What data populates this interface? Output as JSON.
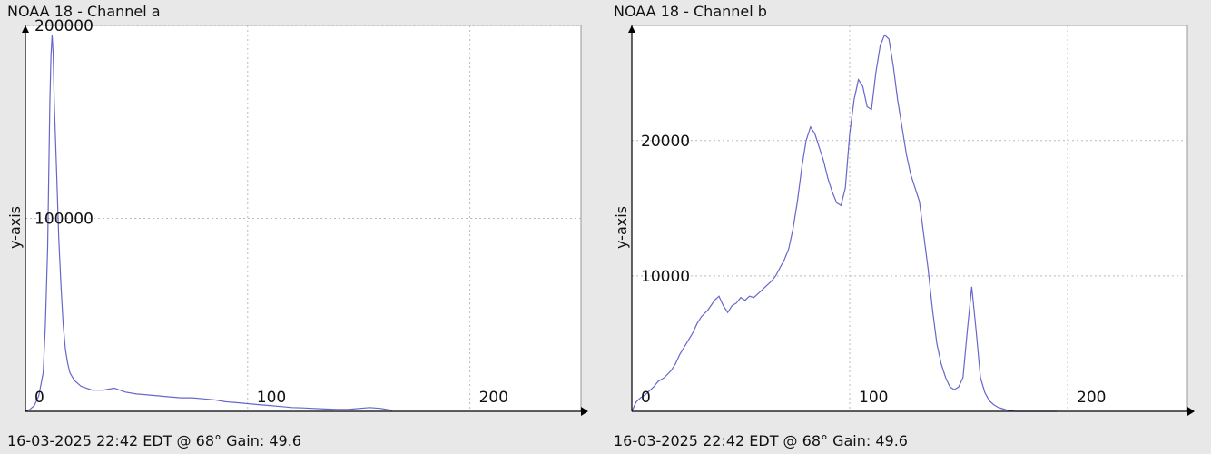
{
  "chart_data": [
    {
      "type": "line",
      "title": "NOAA 18 - Channel a",
      "footer": "16-03-2025 22:42 EDT @ 68° Gain: 49.6",
      "xlabel": "",
      "ylabel": "y-axis",
      "xlim": [
        0,
        250
      ],
      "ylim": [
        0,
        200000
      ],
      "xticks": [
        0,
        100,
        200
      ],
      "yticks": [
        100000,
        200000
      ],
      "grid": true,
      "color": "#6666cc",
      "series": [
        {
          "x": [
            0,
            2,
            4,
            6,
            8,
            9,
            10,
            11,
            11.5,
            12,
            12.5,
            13,
            14,
            15,
            16,
            17,
            18,
            19,
            20,
            22,
            25,
            30,
            35,
            40,
            45,
            50,
            55,
            60,
            65,
            70,
            75,
            80,
            85,
            90,
            95,
            100,
            105,
            110,
            115,
            120,
            125,
            130,
            135,
            140,
            145,
            150,
            155,
            160,
            165
          ],
          "y": [
            0,
            1000,
            3000,
            8000,
            20000,
            45000,
            85000,
            160000,
            185000,
            195000,
            185000,
            160000,
            125000,
            90000,
            65000,
            45000,
            32000,
            25000,
            20000,
            16000,
            13000,
            11000,
            11000,
            12000,
            10000,
            9000,
            8500,
            8000,
            7500,
            7000,
            7000,
            6500,
            6000,
            5000,
            4500,
            4000,
            3500,
            3000,
            2500,
            2000,
            1800,
            1500,
            1200,
            1000,
            1000,
            1500,
            2000,
            1500,
            500
          ]
        }
      ],
      "tick_labels": {
        "x0": "0",
        "x1": "100",
        "x2": "200",
        "y1": "100000",
        "y2": "200000"
      }
    },
    {
      "type": "line",
      "title": "NOAA 18 - Channel b",
      "footer": "16-03-2025 22:42 EDT @ 68° Gain: 49.6",
      "xlabel": "",
      "ylabel": "y-axis",
      "xlim": [
        0,
        255
      ],
      "ylim": [
        0,
        28500
      ],
      "xticks": [
        0,
        100,
        200
      ],
      "yticks": [
        10000,
        20000
      ],
      "grid": true,
      "color": "#6666cc",
      "series": [
        {
          "x": [
            0,
            2,
            4,
            6,
            8,
            10,
            12,
            15,
            18,
            20,
            22,
            25,
            28,
            30,
            32,
            35,
            38,
            40,
            42,
            44,
            46,
            48,
            50,
            52,
            54,
            56,
            58,
            60,
            62,
            64,
            66,
            68,
            70,
            72,
            74,
            76,
            78,
            80,
            82,
            84,
            86,
            88,
            90,
            92,
            94,
            96,
            98,
            100,
            102,
            104,
            106,
            108,
            110,
            112,
            114,
            116,
            118,
            120,
            122,
            124,
            126,
            128,
            130,
            132,
            134,
            136,
            138,
            140,
            142,
            144,
            146,
            148,
            150,
            152,
            154,
            156,
            158,
            160,
            162,
            164,
            166,
            168,
            170,
            172,
            174,
            176,
            178,
            180,
            185,
            190,
            195
          ],
          "y": [
            0,
            700,
            1000,
            1200,
            1500,
            1800,
            2200,
            2500,
            3000,
            3500,
            4200,
            5000,
            5800,
            6500,
            7000,
            7500,
            8200,
            8500,
            7800,
            7300,
            7800,
            8000,
            8400,
            8200,
            8500,
            8400,
            8700,
            9000,
            9300,
            9600,
            10000,
            10600,
            11200,
            12000,
            13500,
            15500,
            18000,
            20000,
            21000,
            20500,
            19500,
            18500,
            17200,
            16200,
            15400,
            15200,
            16500,
            20500,
            23000,
            24500,
            24000,
            22500,
            22300,
            25000,
            27000,
            27800,
            27500,
            25500,
            23000,
            21000,
            19000,
            17500,
            16500,
            15500,
            13000,
            10500,
            7500,
            5000,
            3500,
            2500,
            1800,
            1600,
            1800,
            2500,
            6000,
            9200,
            6000,
            2500,
            1400,
            800,
            500,
            300,
            200,
            100,
            50,
            0,
            0,
            0,
            0,
            0,
            0
          ]
        }
      ],
      "tick_labels": {
        "x0": "0",
        "x1": "100",
        "x2": "200",
        "y1": "10000",
        "y2": "20000"
      }
    }
  ]
}
